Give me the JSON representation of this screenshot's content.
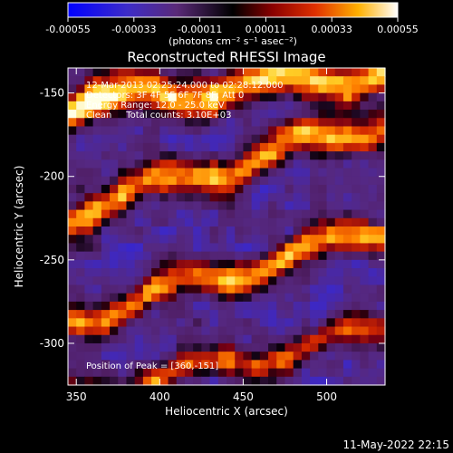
{
  "chart_data": {
    "type": "heatmap",
    "title": "Reconstructed RHESSI Image",
    "xlabel": "Heliocentric X (arcsec)",
    "ylabel": "Heliocentric Y (arcsec)",
    "xlim": [
      345,
      535
    ],
    "ylim": [
      -325,
      -135
    ],
    "x_ticks": [
      350,
      400,
      450,
      500
    ],
    "y_ticks": [
      -150,
      -200,
      -250,
      -300
    ],
    "colorbar": {
      "range": [
        -0.00055,
        0.00055
      ],
      "ticks": [
        -0.00055,
        -0.00033,
        -0.00011,
        0.00011,
        0.00033,
        0.00055
      ],
      "tick_labels": [
        "-0.00055",
        "-0.00033",
        "-0.00011",
        "0.00011",
        "0.00033",
        "0.00055"
      ],
      "unit_label": "(photons cm⁻² s⁻¹ asec⁻²)"
    },
    "annotations": [
      "12-Mar-2013 02:25:24.000 to 02:28:12.000",
      "Detectors: 3F 4F 5F 6F 7F 8F, Att 0",
      "Energy Range: 12.0 - 25.0 keV",
      "Clean     Total counts: 3.10E+03"
    ],
    "peak_label": "Position of Peak = [360,-151]",
    "peak": [
      360,
      -151
    ],
    "emission_bands": [
      {
        "y_at_x345": -157,
        "y_at_x535": -137,
        "width": 12,
        "amplitude": 1.0
      },
      {
        "y_at_x345": -222,
        "y_at_x535": -167,
        "width": 11,
        "amplitude": 0.95
      },
      {
        "y_at_x345": -286,
        "y_at_x535": -232,
        "width": 10,
        "amplitude": 0.9
      },
      {
        "y_at_x345": -332,
        "y_at_x535": -292,
        "width": 9,
        "amplitude": 0.75
      }
    ]
  },
  "footer": {
    "timestamp": "11-May-2022 22:15"
  },
  "colors": {
    "background": "#000000",
    "text": "#ffffff",
    "colormap": [
      "#0000ff",
      "#3a28c8",
      "#4b2c8c",
      "#5a2678",
      "#000000",
      "#7a0010",
      "#c81e00",
      "#ff6400",
      "#ffc000",
      "#ffff80",
      "#ffffff"
    ]
  }
}
